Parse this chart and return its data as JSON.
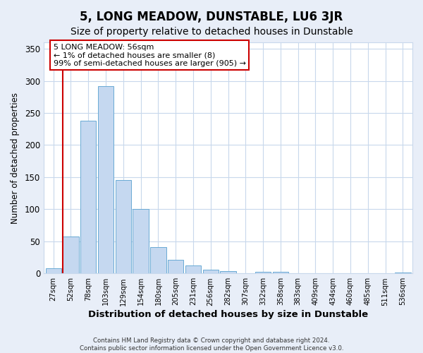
{
  "title": "5, LONG MEADOW, DUNSTABLE, LU6 3JR",
  "subtitle": "Size of property relative to detached houses in Dunstable",
  "xlabel": "Distribution of detached houses by size in Dunstable",
  "ylabel": "Number of detached properties",
  "bar_labels": [
    "27sqm",
    "52sqm",
    "78sqm",
    "103sqm",
    "129sqm",
    "154sqm",
    "180sqm",
    "205sqm",
    "231sqm",
    "256sqm",
    "282sqm",
    "307sqm",
    "332sqm",
    "358sqm",
    "383sqm",
    "409sqm",
    "434sqm",
    "460sqm",
    "485sqm",
    "511sqm",
    "536sqm"
  ],
  "bar_values": [
    8,
    58,
    238,
    292,
    146,
    100,
    41,
    21,
    12,
    6,
    4,
    0,
    3,
    3,
    0,
    0,
    0,
    0,
    0,
    0,
    2
  ],
  "bar_color": "#c5d8f0",
  "bar_edge_color": "#6aaad4",
  "vline_color": "#cc0000",
  "ylim": [
    0,
    360
  ],
  "yticks": [
    0,
    50,
    100,
    150,
    200,
    250,
    300,
    350
  ],
  "annotation_title": "5 LONG MEADOW: 56sqm",
  "annotation_line1": "← 1% of detached houses are smaller (8)",
  "annotation_line2": "99% of semi-detached houses are larger (905) →",
  "annotation_box_color": "#ffffff",
  "annotation_box_edge": "#cc0000",
  "footer1": "Contains HM Land Registry data © Crown copyright and database right 2024.",
  "footer2": "Contains public sector information licensed under the Open Government Licence v3.0.",
  "fig_bg_color": "#e8eef8",
  "plot_bg_color": "#ffffff",
  "grid_color": "#c8d8ec",
  "title_fontsize": 12,
  "subtitle_fontsize": 10
}
